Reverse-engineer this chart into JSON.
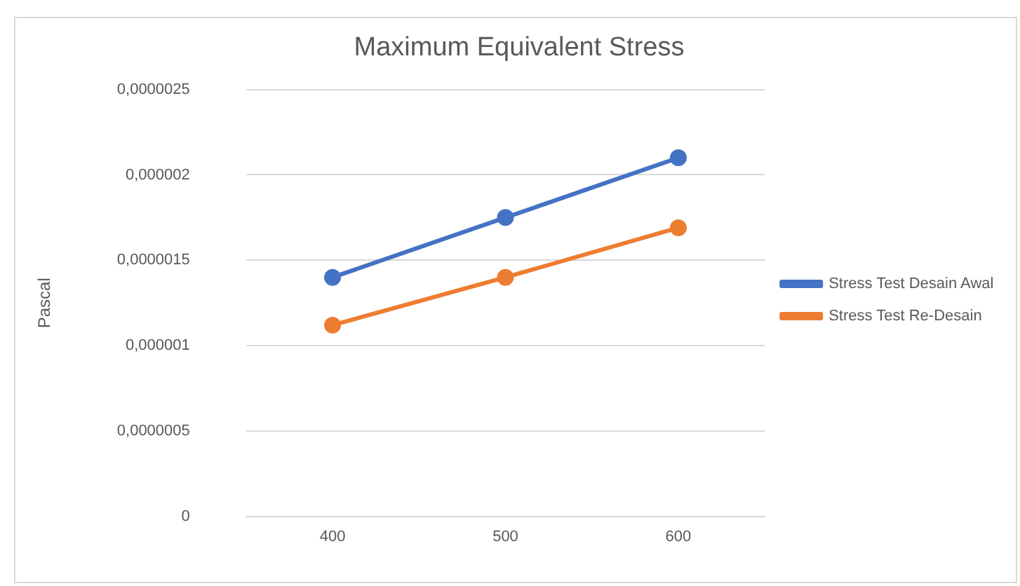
{
  "chart_data": {
    "type": "line",
    "title": "Maximum Equivalent Stress",
    "ylabel": "Pascal",
    "categories": [
      "400",
      "500",
      "600"
    ],
    "series": [
      {
        "name": "Stress Test Desain Awal",
        "color": "#4472c4",
        "values": [
          1.4e-06,
          1.75e-06,
          2.1e-06
        ]
      },
      {
        "name": "Stress Test Re-Desain",
        "color": "#ed7d31",
        "values": [
          1.12e-06,
          1.4e-06,
          1.69e-06
        ]
      }
    ],
    "ylim": [
      0,
      2.5e-06
    ],
    "yticks": [
      {
        "value": 0,
        "label": "0"
      },
      {
        "value": 5e-07,
        "label": "0,0000005"
      },
      {
        "value": 1e-06,
        "label": "0,000001"
      },
      {
        "value": 1.5e-06,
        "label": "0,0000015"
      },
      {
        "value": 2e-06,
        "label": "0,000002"
      },
      {
        "value": 2.5e-06,
        "label": "0,0000025"
      }
    ],
    "grid": "y",
    "legend": "right",
    "marker": "circle",
    "line_style": "solid"
  }
}
